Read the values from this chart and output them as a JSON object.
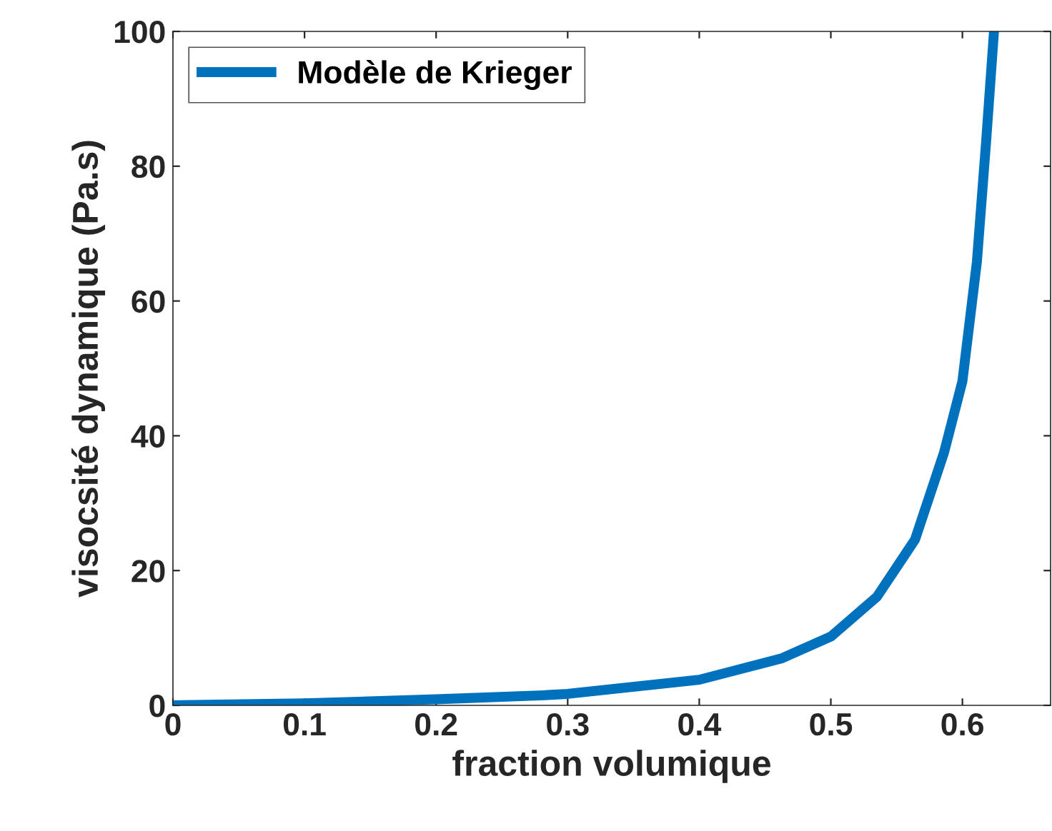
{
  "chart_data": {
    "type": "line",
    "xlabel": "fraction volumique",
    "ylabel": "visocsité dynamique (Pa.s)",
    "xlim": [
      0,
      0.667
    ],
    "xticks": [
      0,
      0.1,
      0.2,
      0.3,
      0.4,
      0.5,
      0.6
    ],
    "ylim": [
      0,
      100
    ],
    "yticks": [
      0,
      20,
      40,
      60,
      80,
      100
    ],
    "grid": false,
    "legend": "top left",
    "series": [
      {
        "name": "Modèle de Krieger",
        "color": "#0072bd",
        "x": [
          0,
          0.1,
          0.2,
          0.282,
          0.3,
          0.4,
          0.463,
          0.5,
          0.535,
          0.564,
          0.586,
          0.6,
          0.611,
          0.618,
          0.624
        ],
        "values": [
          0,
          0.3,
          0.9,
          1.5,
          1.7,
          3.8,
          7.0,
          10.2,
          16.1,
          24.6,
          37.5,
          48.1,
          65.8,
          83.6,
          100
        ]
      }
    ]
  }
}
